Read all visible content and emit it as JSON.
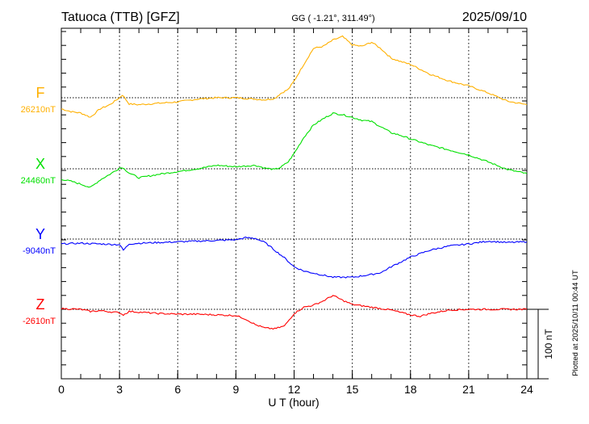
{
  "header": {
    "station": "Tatuoca (TTB)  [GFZ]",
    "coords": "GG ( -1.21°, 311.49°)",
    "date": "2025/09/10"
  },
  "footer": {
    "plotted": "Plotted at 2025/10/11 00:44 UT"
  },
  "chart_data": {
    "type": "line",
    "xlabel": "U T (hour)",
    "xlim": [
      0,
      24
    ],
    "xticks": [
      "0",
      "3",
      "6",
      "9",
      "12",
      "15",
      "18",
      "21",
      "24"
    ],
    "grid": true,
    "scale_bar": "100 nT",
    "series": [
      {
        "name": "F",
        "baseline_label": "26210nT",
        "color": "#ffb000",
        "x": [
          0,
          0.5,
          1,
          1.5,
          2,
          2.5,
          3,
          3.15,
          3.5,
          4,
          5,
          6,
          7,
          8,
          9,
          10,
          10.5,
          11,
          11.3,
          11.7,
          12,
          12.5,
          13,
          13.5,
          14,
          14.5,
          15,
          15.5,
          16,
          16.5,
          17,
          17.5,
          18,
          19,
          20,
          21,
          22,
          23,
          24
        ],
        "y": [
          -16,
          -20,
          -22,
          -28,
          -16,
          -10,
          0,
          4,
          -9,
          -10,
          -8,
          -6,
          -2,
          0,
          0,
          -2,
          -3,
          -1,
          6,
          12,
          24,
          48,
          71,
          74,
          83,
          88,
          76,
          74,
          80,
          70,
          57,
          52,
          48,
          34,
          24,
          17,
          7,
          -5,
          -10
        ]
      },
      {
        "name": "X",
        "baseline_label": "24460nT",
        "color": "#00e000",
        "x": [
          0,
          0.5,
          1,
          1.5,
          2,
          2.5,
          3,
          3.15,
          3.5,
          4,
          5,
          6,
          7,
          8,
          9,
          10,
          10.5,
          11,
          11.3,
          11.7,
          12,
          12.5,
          13,
          13.5,
          14,
          14.5,
          15,
          15.5,
          16,
          16.5,
          17,
          17.5,
          18,
          19,
          20,
          21,
          22,
          23,
          24
        ],
        "y": [
          -15,
          -18,
          -22,
          -27,
          -16,
          -8,
          1,
          2,
          -6,
          -13,
          -8,
          -4,
          0,
          5,
          3,
          5,
          1,
          -1,
          2,
          10,
          22,
          45,
          63,
          72,
          80,
          78,
          74,
          70,
          68,
          60,
          52,
          48,
          43,
          34,
          27,
          20,
          10,
          -1,
          -7
        ]
      },
      {
        "name": "Y",
        "baseline_label": "-9040nT",
        "color": "#0000ff",
        "x": [
          0,
          1,
          2,
          3,
          3.2,
          3.5,
          4,
          5,
          6,
          7,
          8,
          9,
          9.5,
          10,
          10.5,
          11,
          11.5,
          12,
          12.5,
          13,
          14,
          15,
          16,
          16.5,
          17,
          18,
          19,
          20,
          21,
          22,
          23,
          24
        ],
        "y": [
          -7,
          -6,
          -7,
          -8,
          -16,
          -7,
          -6,
          -5,
          -4,
          -3,
          -2,
          -1,
          2,
          1,
          -5,
          -16,
          -27,
          -40,
          -46,
          -49,
          -55,
          -55,
          -51,
          -48,
          -40,
          -26,
          -16,
          -10,
          -7,
          -3,
          -5,
          -4
        ]
      },
      {
        "name": "Z",
        "baseline_label": "-2610nT",
        "color": "#ff0000",
        "x": [
          0,
          1,
          1.5,
          2,
          3,
          3.2,
          3.5,
          4,
          5,
          6,
          7,
          8,
          9,
          9.5,
          10,
          10.5,
          11,
          11.5,
          12,
          12.5,
          13,
          13.5,
          14,
          14.5,
          15,
          16,
          17,
          18,
          18.5,
          19,
          20,
          21,
          22,
          23,
          24
        ],
        "y": [
          1,
          0,
          -3,
          -2,
          -5,
          -8,
          -3,
          -4,
          -6,
          -7,
          -7,
          -8,
          -9,
          -14,
          -22,
          -27,
          -28,
          -24,
          -6,
          3,
          6,
          12,
          20,
          13,
          7,
          3,
          -1,
          -8,
          -10,
          -6,
          -1,
          0,
          0,
          0,
          0
        ]
      }
    ]
  }
}
